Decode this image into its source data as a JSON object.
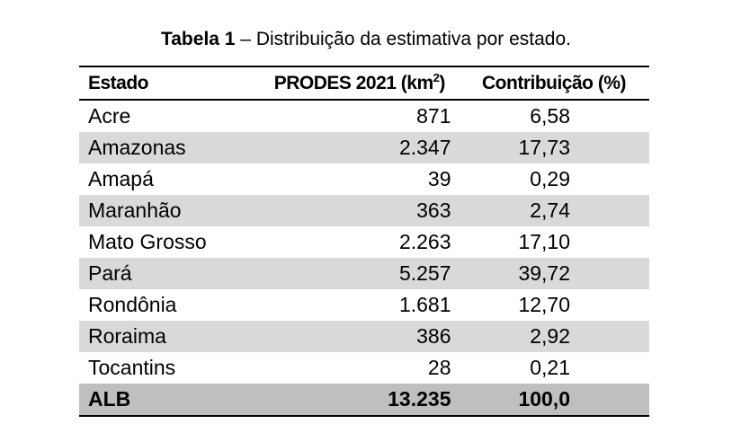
{
  "caption": {
    "label": "Tabela 1",
    "text": " – Distribuição da estimativa por estado."
  },
  "table": {
    "headers": {
      "estado": "Estado",
      "prodes": "PRODES 2021 (km",
      "prodes_sup": "2",
      "prodes_close": ")",
      "contrib": "Contribuição (%)"
    },
    "rows": [
      {
        "estado": "Acre",
        "prodes": "871",
        "contrib": "6,58"
      },
      {
        "estado": "Amazonas",
        "prodes": "2.347",
        "contrib": "17,73"
      },
      {
        "estado": "Amapá",
        "prodes": "39",
        "contrib": "0,29"
      },
      {
        "estado": "Maranhão",
        "prodes": "363",
        "contrib": "2,74"
      },
      {
        "estado": "Mato Grosso",
        "prodes": "2.263",
        "contrib": "17,10"
      },
      {
        "estado": "Pará",
        "prodes": "5.257",
        "contrib": "39,72"
      },
      {
        "estado": "Rondônia",
        "prodes": "1.681",
        "contrib": "12,70"
      },
      {
        "estado": "Roraima",
        "prodes": "386",
        "contrib": "2,92"
      },
      {
        "estado": "Tocantins",
        "prodes": "28",
        "contrib": "0,21"
      }
    ],
    "total": {
      "estado": "ALB",
      "prodes": "13.235",
      "contrib": "100,0"
    }
  }
}
